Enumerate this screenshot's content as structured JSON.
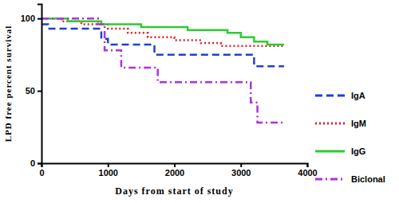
{
  "chart_data": {
    "type": "line",
    "x_label": "Days from start of study",
    "y_label": "LPD free percent survival",
    "xlim": [
      0,
      4000
    ],
    "xticks": [
      0,
      1000,
      2000,
      3000,
      4000
    ],
    "ylim": [
      0,
      110
    ],
    "yticks": [
      0,
      50,
      100
    ],
    "legend": "right",
    "series": [
      {
        "name": "IgA",
        "color": "#1f3fd6",
        "line_style": "dashed",
        "x": [
          0,
          100,
          900,
          1000,
          1700,
          3200,
          3650
        ],
        "values": [
          96,
          93,
          86,
          82,
          75,
          67,
          67
        ]
      },
      {
        "name": "IgM",
        "color": "#e0202a",
        "line_style": "dotted",
        "x": [
          0,
          300,
          600,
          1000,
          1300,
          1600,
          2000,
          2400,
          2700,
          3650
        ],
        "values": [
          100,
          98,
          96,
          93,
          90,
          87,
          85,
          83,
          81,
          81
        ]
      },
      {
        "name": "IgG",
        "color": "#2ecc2e",
        "line_style": "solid",
        "x": [
          0,
          400,
          900,
          1500,
          2200,
          2800,
          3000,
          3200,
          3400,
          3650
        ],
        "values": [
          100,
          98,
          96,
          94,
          92,
          90,
          87,
          84,
          82,
          82
        ]
      },
      {
        "name": "Biclonal",
        "color": "#b030e0",
        "line_style": "dashdot",
        "x": [
          0,
          850,
          950,
          1200,
          1750,
          3150,
          3250,
          3650
        ],
        "values": [
          100,
          96,
          78,
          66,
          56,
          42,
          28,
          28
        ]
      }
    ]
  }
}
